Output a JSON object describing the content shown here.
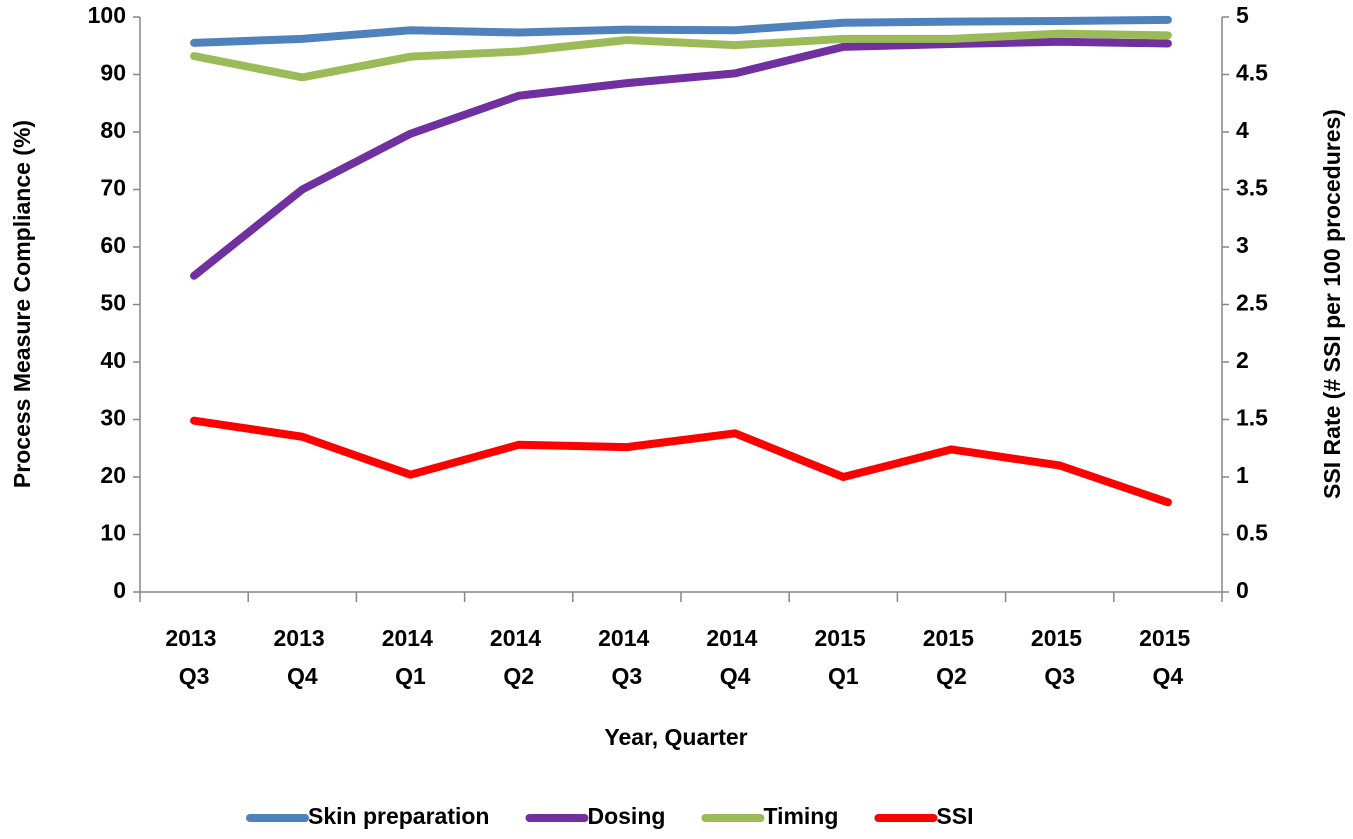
{
  "chart_data": {
    "type": "line",
    "x_label": "Year, Quarter",
    "y_label": "Process Measure Compliance (%)",
    "y2_label": "SSI Rate (# SSI per 100 procedures)",
    "categories": [
      "2013 Q3",
      "2013 Q4",
      "2014 Q1",
      "2014 Q2",
      "2014 Q3",
      "2014 Q4",
      "2015 Q1",
      "2015 Q2",
      "2015 Q3",
      "2015 Q4"
    ],
    "series": [
      {
        "name": "Skin preparation",
        "color": "#4f81bd",
        "values": [
          95.5,
          96.2,
          97.7,
          97.3,
          97.8,
          97.7,
          99.0,
          99.2,
          99.3,
          99.5
        ]
      },
      {
        "name": "Dosing",
        "color": "#7030a0",
        "values": [
          55,
          70,
          79.7,
          86.3,
          88.5,
          90.2,
          94.8,
          95.3,
          95.7,
          95.4
        ]
      },
      {
        "name": "Timing",
        "color": "#9bbb59",
        "values": [
          93.2,
          89.5,
          93.1,
          94.0,
          96.0,
          95.1,
          96.2,
          96.2,
          97.1,
          96.8
        ]
      },
      {
        "name": "SSI",
        "color": "#ff0000",
        "axis": "y2",
        "values": [
          1.49,
          1.35,
          1.02,
          1.28,
          1.26,
          1.38,
          1.0,
          1.24,
          1.1,
          0.78
        ]
      }
    ],
    "ylim": [
      0,
      100
    ],
    "yticks": [
      0,
      10,
      20,
      30,
      40,
      50,
      60,
      70,
      80,
      90,
      100
    ],
    "y2lim": [
      0,
      5
    ],
    "y2ticks": [
      0,
      0.5,
      1,
      1.5,
      2,
      2.5,
      3,
      3.5,
      4,
      4.5,
      5
    ],
    "grid": false,
    "legend": "bottom"
  }
}
